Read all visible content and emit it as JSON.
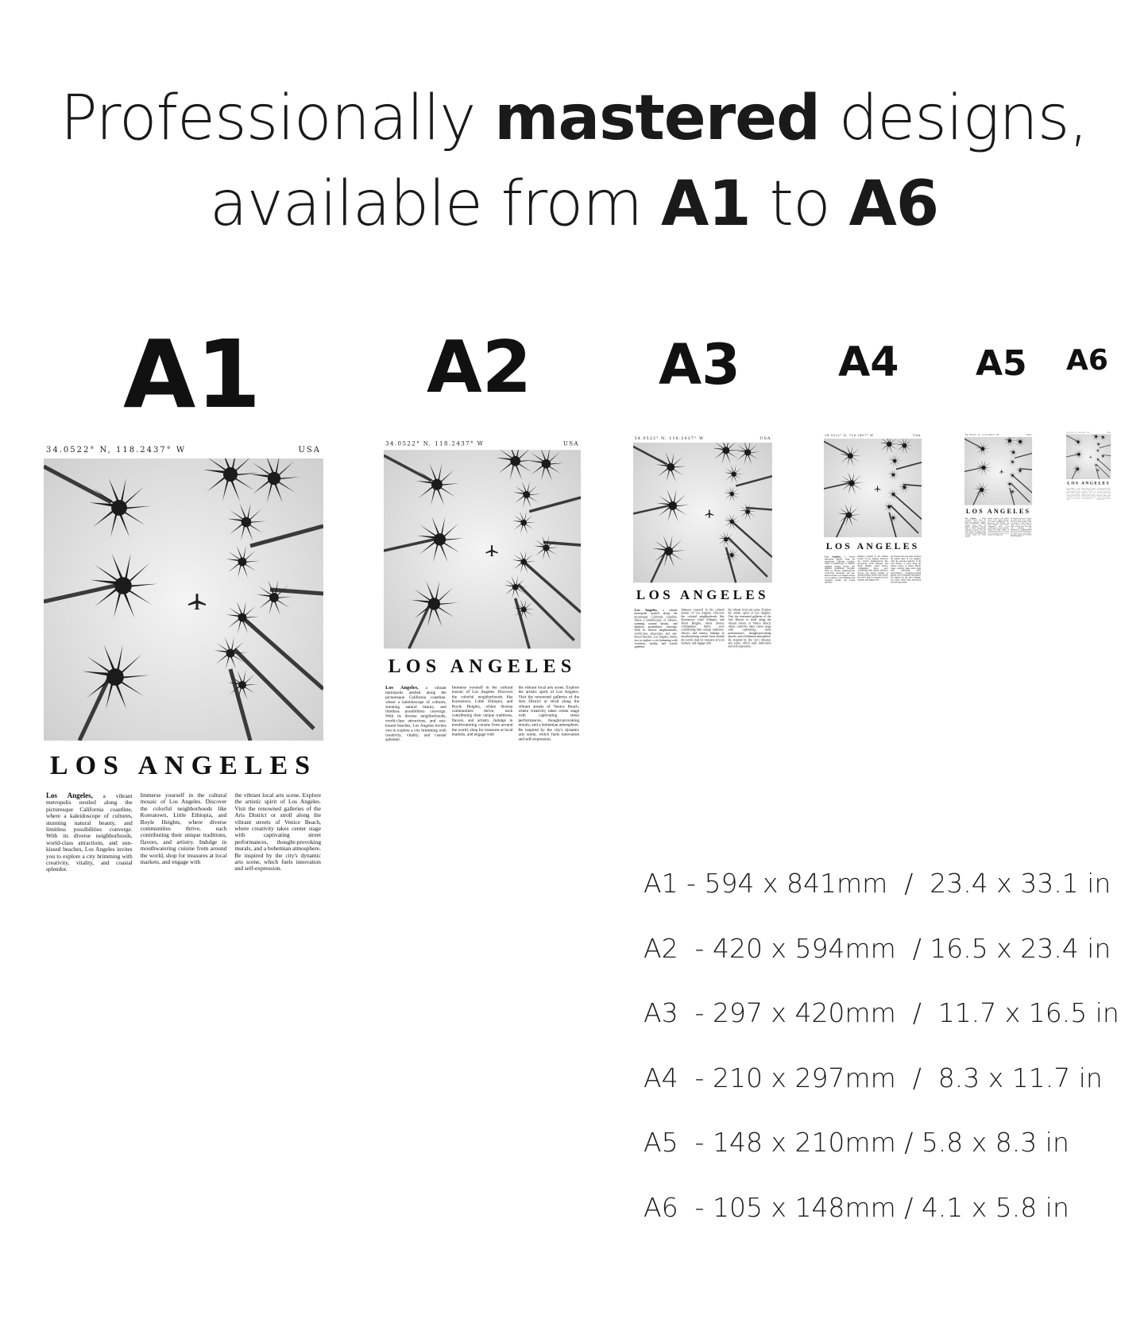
{
  "headline": {
    "line1_pre": "Professionally ",
    "line1_bold": "mastered",
    "line1_post": " designs,",
    "line2_pre": "available from ",
    "line2_bold1": "A1",
    "line2_mid": " to ",
    "line2_bold2": "A6"
  },
  "size_labels": [
    "A1",
    "A2",
    "A3",
    "A4",
    "A5",
    "A6"
  ],
  "poster": {
    "coordinates": "34.0522° N, 118.2437° W",
    "country": "USA",
    "title": "LOS ANGELES",
    "lead": "Los Angeles,",
    "col1": " a vibrant metropolis nestled along the picturesque California coastline, where a kaleidoscope of cultures, stunning natural beauty, and limitless possibilities converge. With its diverse neighborhoods, world-class attractions, and sun-kissed beaches, Los Angeles invites you to explore a city brimming with creativity, vitality, and coastal splendor.",
    "col2": "Immerse yourself in the cultural mosaic of Los Angeles. Discover the colorful neighborhoods like Koreatown, Little Ethiopia, and Boyle Heights, where diverse communities thrive, each contributing their unique traditions, flavors, and artistry. Indulge in mouthwatering cuisine from around the world, shop for treasures at local markets, and engage with",
    "col3": "the vibrant local arts scene. Explore the artistic spirit of Los Angeles. Visit the renowned galleries of the Arts District or stroll along the vibrant streets of Venice Beach, where creativity takes center stage with captivating street performances, thought-provoking murals, and a bohemian atmosphere. Be inspired by the city's dynamic arts scene, which fuels innovation and self-expression."
  },
  "dimensions": [
    "A1 - 594 x 841mm  /  23.4 x 33.1 in",
    "A2  - 420 x 594mm  / 16.5 x 23.4 in",
    "A3  - 297 x 420mm  /  11.7 x 16.5 in",
    "A4  - 210 x 297mm  /  8.3 x 11.7 in",
    "A5  - 148 x 210mm / 5.8 x 8.3 in",
    "A6  - 105 x 148mm / 4.1 x 5.8 in"
  ]
}
